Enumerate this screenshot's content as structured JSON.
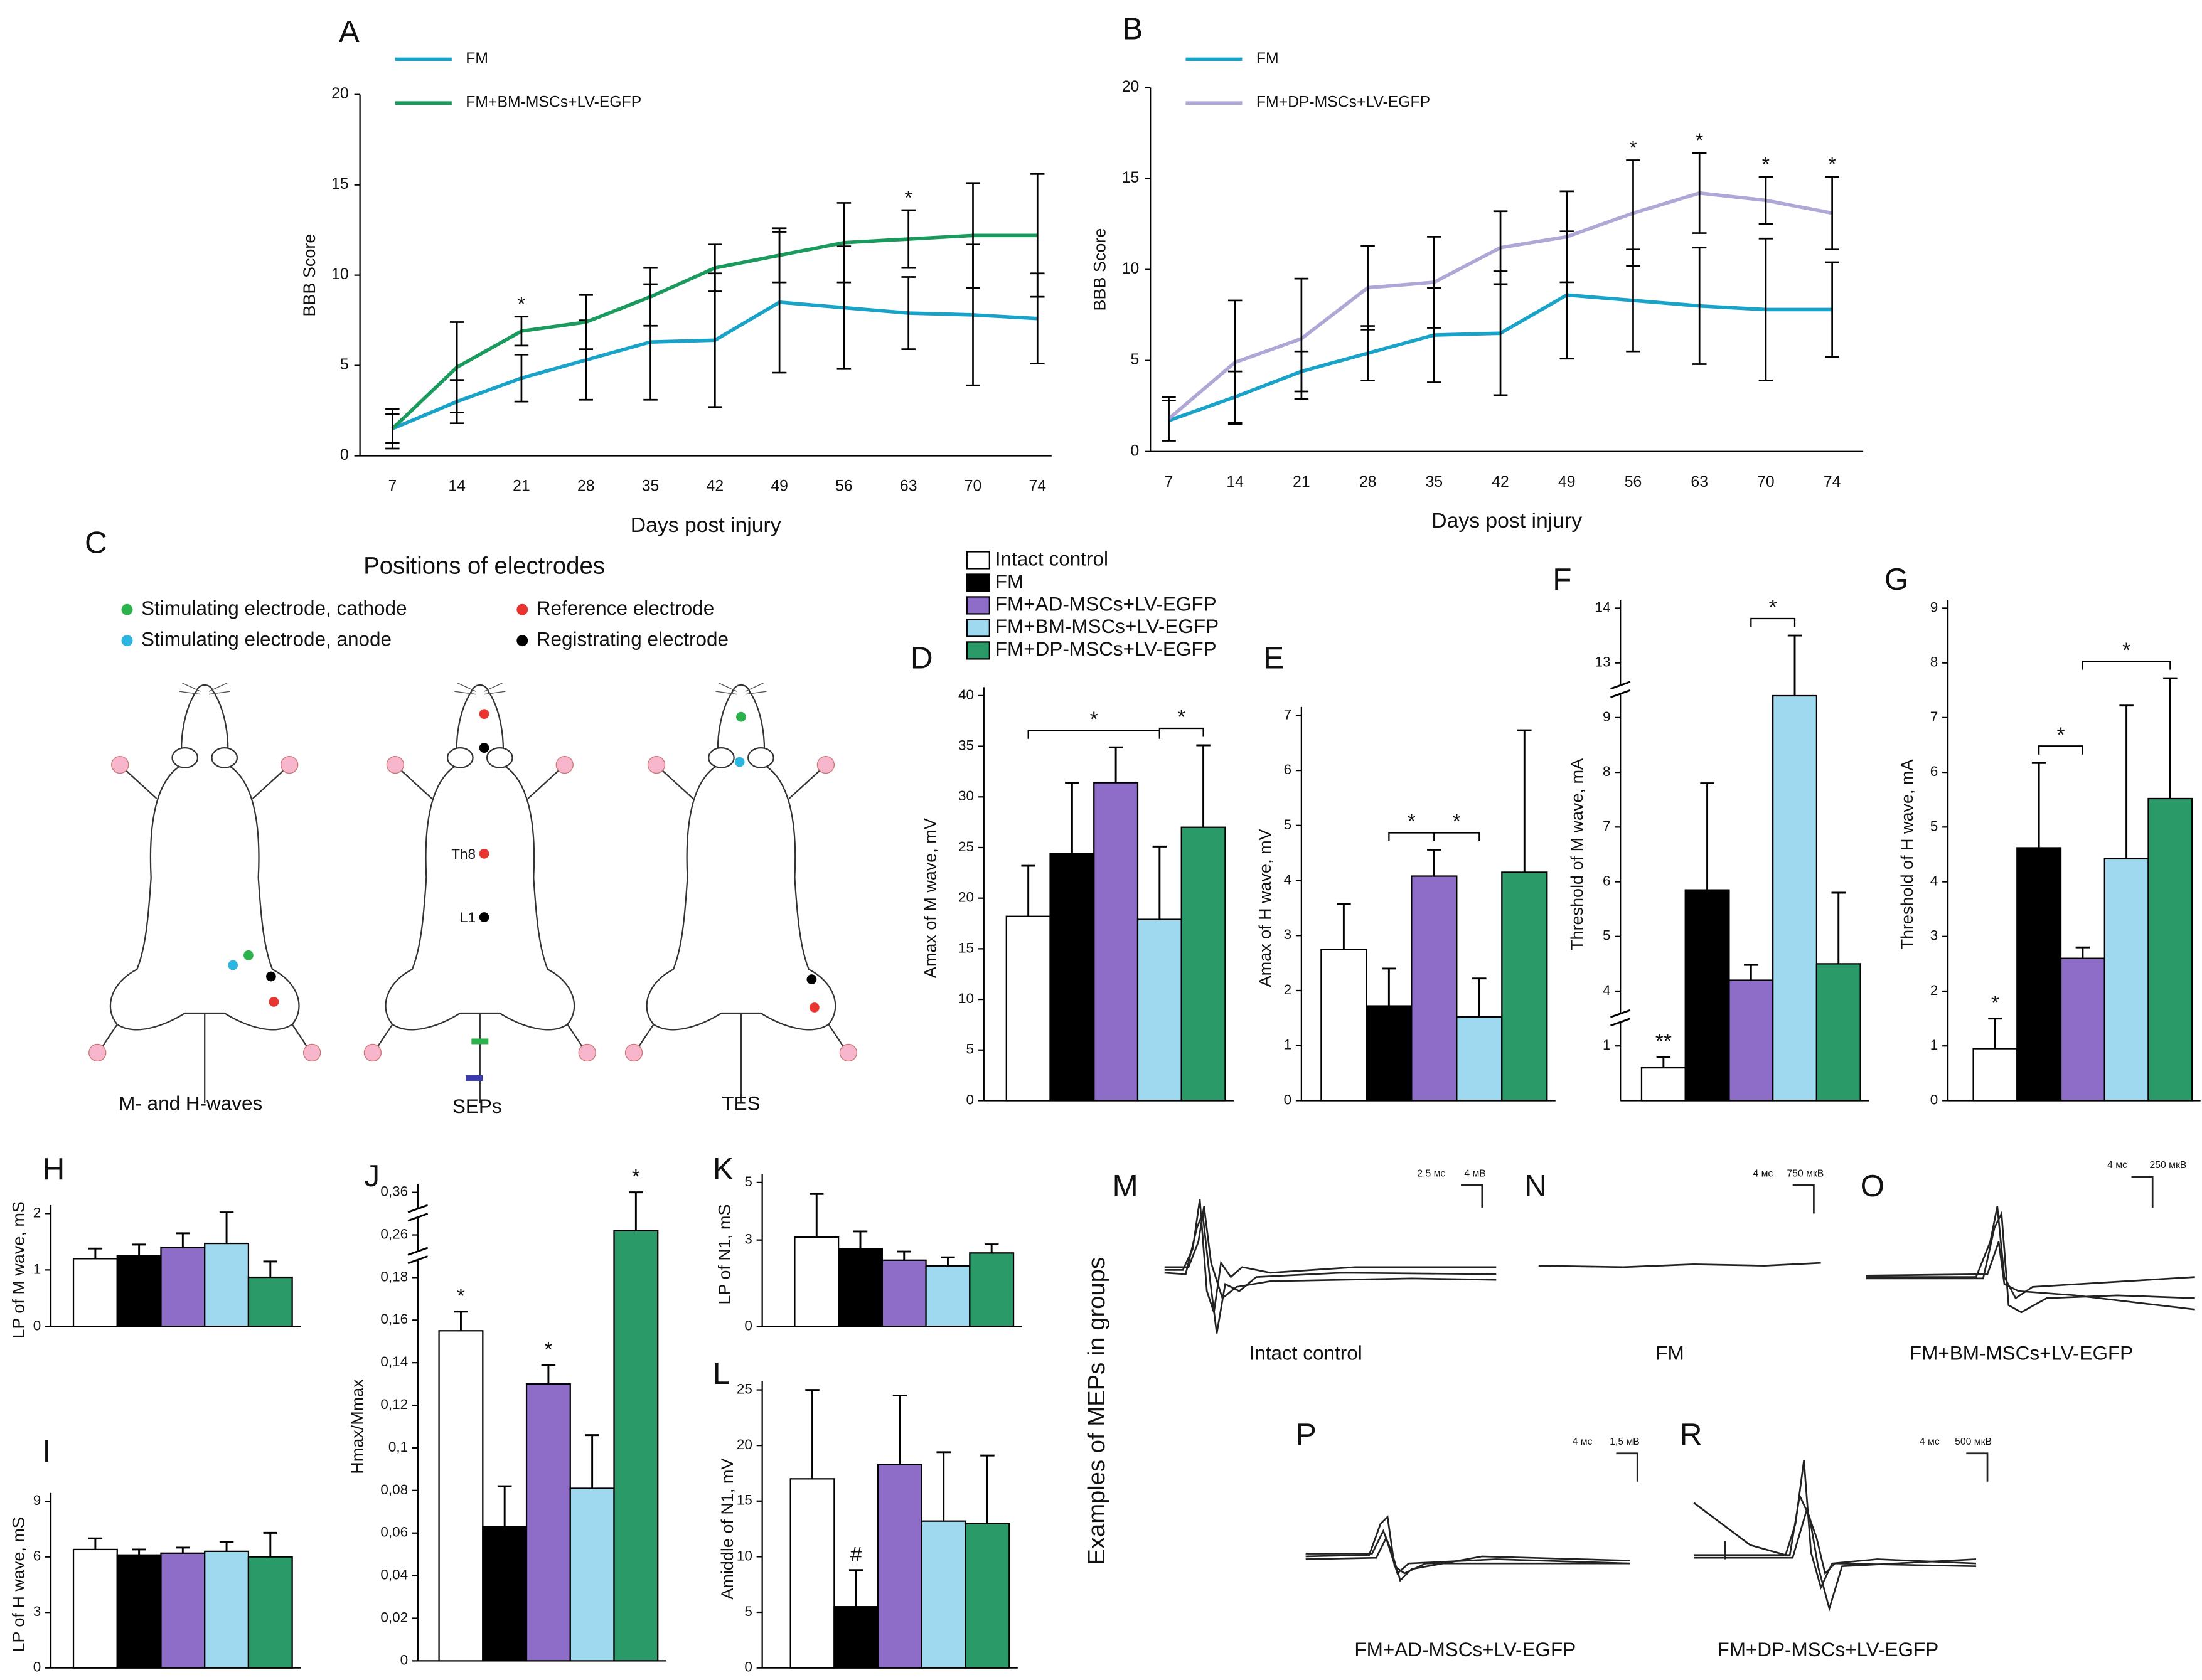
{
  "legend": {
    "entries": [
      {
        "name": "Intact control",
        "color": "#ffffff"
      },
      {
        "name": "FM",
        "color": "#000000"
      },
      {
        "name": "FM+AD-MSCs+LV-EGFP",
        "color": "#8d6dc8"
      },
      {
        "name": "FM+BM-MSCs+LV-EGFP",
        "color": "#9fd9f0"
      },
      {
        "name": "FM+DP-MSCs+LV-EGFP",
        "color": "#2a9a68"
      }
    ]
  },
  "chart_data": [
    {
      "type": "line",
      "label": "A",
      "xlabel": "Days post injury",
      "ylabel": "BBB Score",
      "categories": [
        "7",
        "14",
        "21",
        "28",
        "35",
        "42",
        "49",
        "56",
        "63",
        "70",
        "74"
      ],
      "ylim": [
        0,
        20
      ],
      "yticks": [
        0,
        5,
        10,
        15,
        20
      ],
      "series": [
        {
          "name": "FM",
          "color": "#1aa3c8",
          "values": [
            1.5,
            3.0,
            4.3,
            5.3,
            6.3,
            6.4,
            8.5,
            8.2,
            7.9,
            7.8,
            7.6
          ],
          "errors": [
            0.8,
            1.2,
            1.3,
            2.2,
            3.2,
            3.7,
            3.9,
            3.4,
            2.0,
            3.9,
            2.5
          ]
        },
        {
          "name": "FM+BM-MSCs+LV-EGFP",
          "color": "#1b9a5e",
          "values": [
            1.5,
            4.9,
            6.9,
            7.4,
            8.8,
            10.4,
            11.1,
            11.8,
            12.0,
            12.2,
            12.2
          ],
          "errors": [
            1.1,
            2.5,
            0.8,
            1.5,
            1.6,
            1.3,
            1.5,
            2.2,
            1.6,
            2.9,
            3.4
          ]
        }
      ],
      "star_labels": [
        null,
        null,
        "*",
        null,
        null,
        null,
        null,
        null,
        "*",
        null,
        null
      ]
    },
    {
      "type": "line",
      "label": "B",
      "xlabel": "Days post injury",
      "ylabel": "BBB Score",
      "categories": [
        "7",
        "14",
        "21",
        "28",
        "35",
        "42",
        "49",
        "56",
        "63",
        "70",
        "74"
      ],
      "ylim": [
        0,
        20
      ],
      "yticks": [
        0,
        5,
        10,
        15,
        20
      ],
      "series": [
        {
          "name": "FM",
          "color": "#1aa3c8",
          "values": [
            1.7,
            3.0,
            4.4,
            5.4,
            6.4,
            6.5,
            8.6,
            8.3,
            8.0,
            7.8,
            7.8
          ],
          "errors": [
            1.1,
            1.4,
            1.1,
            1.5,
            2.6,
            3.4,
            3.5,
            2.8,
            3.2,
            3.9,
            2.6
          ]
        },
        {
          "name": "FM+DP-MSCs+LV-EGFP",
          "color": "#b1a7d6",
          "values": [
            1.8,
            4.9,
            6.2,
            9.0,
            9.3,
            11.2,
            11.8,
            13.1,
            14.2,
            13.8,
            13.1
          ],
          "errors": [
            1.2,
            3.4,
            3.3,
            2.3,
            2.5,
            2.0,
            2.5,
            2.9,
            2.2,
            1.3,
            2.0
          ]
        }
      ],
      "star_labels": [
        null,
        null,
        null,
        null,
        null,
        null,
        null,
        "*",
        "*",
        "*",
        "*"
      ]
    },
    {
      "type": "bar",
      "label": "D",
      "ylabel": "Amax of M wave, mV",
      "ylim": [
        0,
        40
      ],
      "yticks": [
        0,
        5,
        10,
        15,
        20,
        25,
        30,
        35,
        40
      ],
      "values": [
        18.2,
        24.4,
        31.4,
        17.9,
        27.0
      ],
      "errors": [
        5.0,
        7.0,
        3.5,
        7.2,
        8.1
      ],
      "brackets": [
        {
          "bars": [
            0,
            3
          ],
          "label": "*"
        },
        {
          "bars": [
            3,
            4
          ],
          "label": "*"
        }
      ]
    },
    {
      "type": "bar",
      "label": "E",
      "ylabel": "Amax of H wave, mV",
      "ylim": [
        0,
        7
      ],
      "yticks": [
        0,
        1,
        2,
        3,
        4,
        5,
        6,
        7
      ],
      "values": [
        2.75,
        1.72,
        4.08,
        1.52,
        4.15
      ],
      "errors": [
        0.82,
        0.68,
        0.48,
        0.7,
        2.58
      ],
      "brackets": [
        {
          "bars": [
            1,
            2
          ],
          "label": "*"
        },
        {
          "bars": [
            2,
            3
          ],
          "label": "*"
        }
      ]
    },
    {
      "type": "bar",
      "label": "F",
      "ylabel": "Threshold of M wave, mA",
      "ylim": [
        0,
        14
      ],
      "yticks": [
        1,
        4,
        5,
        6,
        7,
        8,
        9,
        13,
        14
      ],
      "axis_breaks": [
        [
          1,
          4
        ],
        [
          9,
          13
        ]
      ],
      "values": [
        0.6,
        5.85,
        4.2,
        10.6,
        4.5
      ],
      "errors": [
        0.2,
        1.95,
        0.28,
        2.9,
        1.3
      ],
      "bar_labels": [
        "**",
        null,
        null,
        null,
        null
      ],
      "brackets": [
        {
          "bars": [
            2,
            3
          ],
          "label": "*"
        }
      ]
    },
    {
      "type": "bar",
      "label": "G",
      "ylabel": "Threshold of H wave, mA",
      "ylim": [
        0,
        9
      ],
      "yticks": [
        0,
        1,
        2,
        3,
        4,
        5,
        6,
        7,
        8,
        9
      ],
      "values": [
        0.95,
        4.62,
        2.6,
        4.42,
        5.52
      ],
      "errors": [
        0.55,
        1.55,
        0.2,
        2.8,
        2.2
      ],
      "bar_labels": [
        "*",
        null,
        null,
        null,
        null
      ],
      "brackets": [
        {
          "bars": [
            1,
            2
          ],
          "label": "*"
        },
        {
          "bars": [
            2,
            4
          ],
          "label": "*"
        }
      ]
    },
    {
      "type": "bar",
      "label": "H",
      "ylabel": "LP of M wave, mS",
      "ylim": [
        0,
        2
      ],
      "yticks": [
        0,
        1,
        2
      ],
      "values": [
        1.2,
        1.25,
        1.4,
        1.47,
        0.87
      ],
      "errors": [
        0.18,
        0.2,
        0.25,
        0.55,
        0.28
      ]
    },
    {
      "type": "bar",
      "label": "I",
      "ylabel": "LP of H wave, mS",
      "ylim": [
        0,
        9
      ],
      "yticks": [
        0,
        3,
        6,
        9
      ],
      "values": [
        6.4,
        6.1,
        6.2,
        6.3,
        6.0
      ],
      "errors": [
        0.6,
        0.3,
        0.3,
        0.5,
        1.3
      ]
    },
    {
      "type": "bar",
      "label": "J",
      "ylabel": "Hmax/Mmax",
      "ylim": [
        0,
        0.36
      ],
      "yticks": [
        0,
        {
          "value": 0.02,
          "label": "0,02"
        },
        {
          "value": 0.04,
          "label": "0,04"
        },
        {
          "value": 0.06,
          "label": "0,06"
        },
        {
          "value": 0.08,
          "label": "0,08"
        },
        {
          "value": 0.1,
          "label": "0,1"
        },
        {
          "value": 0.12,
          "label": "0,12"
        },
        {
          "value": 0.14,
          "label": "0,14"
        },
        {
          "value": 0.16,
          "label": "0,16"
        },
        {
          "value": 0.18,
          "label": "0,18"
        },
        {
          "value": 0.26,
          "label": "0,26"
        },
        {
          "value": 0.36,
          "label": "0,36"
        }
      ],
      "axis_breaks": [
        [
          0.18,
          0.26
        ],
        [
          0.26,
          0.36
        ]
      ],
      "values": [
        0.155,
        0.063,
        0.13,
        0.081,
        0.27
      ],
      "errors": [
        0.009,
        0.019,
        0.009,
        0.025,
        0.09
      ],
      "bar_labels": [
        "*",
        null,
        "*",
        null,
        "*"
      ]
    },
    {
      "type": "bar",
      "label": "K",
      "ylabel": "LP of N1, mS",
      "ylim": [
        0,
        5
      ],
      "yticks": [
        0,
        3,
        5
      ],
      "values": [
        3.1,
        2.7,
        2.3,
        2.1,
        2.55
      ],
      "errors": [
        1.5,
        0.6,
        0.3,
        0.3,
        0.3
      ]
    },
    {
      "type": "bar",
      "label": "L",
      "ylabel": "Amiddle of N1, mV",
      "ylim": [
        0,
        25
      ],
      "yticks": [
        0,
        5,
        10,
        15,
        20,
        25
      ],
      "values": [
        17.0,
        5.5,
        18.3,
        13.2,
        13.0
      ],
      "errors": [
        8.0,
        3.3,
        6.2,
        6.2,
        6.1
      ],
      "bar_labels": [
        null,
        "#",
        null,
        null,
        null
      ]
    }
  ],
  "diagram": {
    "label": "C",
    "title": "Positions of electrodes",
    "legend": [
      {
        "name": "Stimulating electrode, cathode",
        "color": "#2bb24c"
      },
      {
        "name": "Stimulating electrode, anode",
        "color": "#2bb5e0"
      },
      {
        "name": "Reference electrode",
        "color": "#e8352f"
      },
      {
        "name": "Registrating electrode",
        "color": "#000000"
      }
    ],
    "rats": [
      {
        "caption": "M- and H-waves"
      },
      {
        "caption": "SEPs",
        "labels": [
          "Th8",
          "L1"
        ]
      },
      {
        "caption": "TES"
      }
    ]
  },
  "meps": {
    "title": "Examples of MEPs in groups",
    "panels": [
      {
        "label": "M",
        "caption": "Intact control",
        "scale": [
          "2,5 мс",
          "4 мВ"
        ]
      },
      {
        "label": "N",
        "caption": "FM",
        "scale": [
          "4 мс",
          "750 мкВ"
        ]
      },
      {
        "label": "O",
        "caption": "FM+BM-MSCs+LV-EGFP",
        "scale": [
          "4 мс",
          "250 мкВ"
        ]
      },
      {
        "label": "P",
        "caption": "FM+AD-MSCs+LV-EGFP",
        "scale": [
          "4 мс",
          "1,5 мВ"
        ]
      },
      {
        "label": "R",
        "caption": "FM+DP-MSCs+LV-EGFP",
        "scale": [
          "4 мс",
          "500 мкВ"
        ]
      }
    ]
  }
}
